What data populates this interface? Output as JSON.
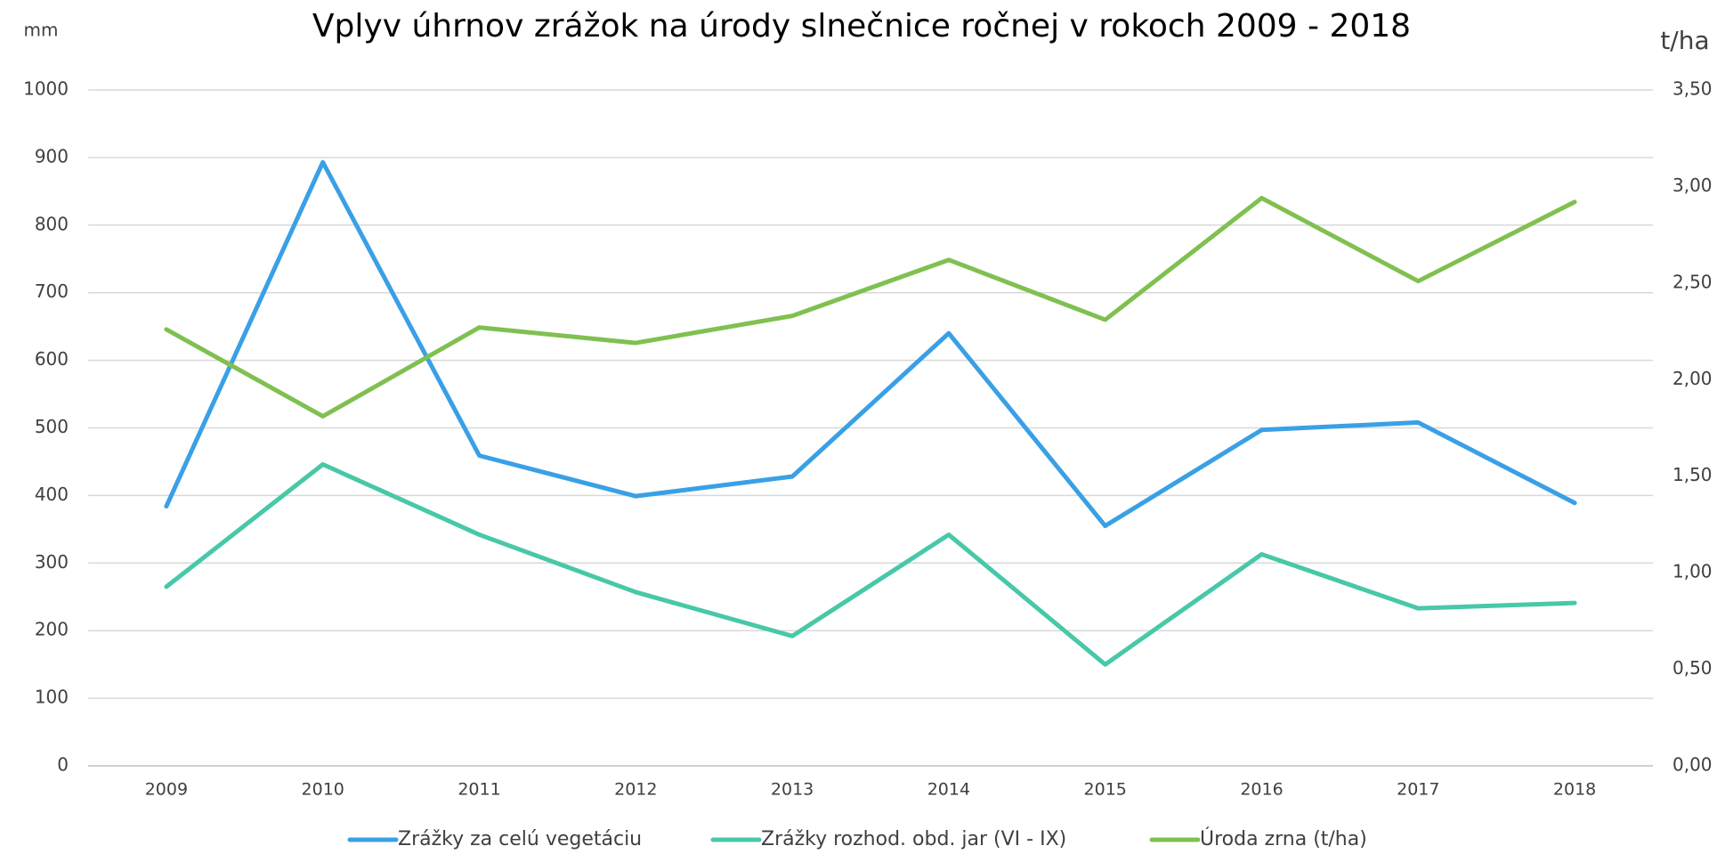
{
  "chart_data": {
    "type": "line",
    "title": "Vplyv úhrnov zrážok na úrody slnečnice ročnej v rokoch 2009 - 2018",
    "y_label": "mm",
    "y2_label": "t/ha",
    "categories": [
      "2009",
      "2010",
      "2011",
      "2012",
      "2013",
      "2014",
      "2015",
      "2016",
      "2017",
      "2018"
    ],
    "series": [
      {
        "name": "Zrážky za celú vegetáciu",
        "color": "#3aa0e6",
        "values": [
          384,
          893,
          459,
          399,
          428,
          640,
          355,
          497,
          508,
          389
        ]
      },
      {
        "name": "Zrážky rozhod. obd. jar (VI - IX)",
        "color": "#48c8a8",
        "values": [
          265,
          446,
          342,
          257,
          192,
          342,
          150,
          313,
          233,
          241
        ]
      },
      {
        "name": "Úroda zrna (t/ha)",
        "color": "#80c050",
        "axis": "y2",
        "values": [
          2.26,
          1.81,
          2.27,
          2.19,
          2.33,
          2.62,
          2.31,
          2.94,
          2.51,
          2.92
        ]
      }
    ],
    "ylim": [
      0,
      1000
    ],
    "yticks": [
      0,
      100,
      200,
      300,
      400,
      500,
      600,
      700,
      800,
      900,
      1000
    ],
    "y2lim": [
      0,
      3.5
    ],
    "y2ticks": [
      {
        "value": 0,
        "label": "0,00"
      },
      {
        "value": 0.5,
        "label": "0,50"
      },
      {
        "value": 1,
        "label": "1,00"
      },
      {
        "value": 1.5,
        "label": "1,50"
      },
      {
        "value": 2,
        "label": "2,00"
      },
      {
        "value": 2.5,
        "label": "2,50"
      },
      {
        "value": 3,
        "label": "3,00"
      },
      {
        "value": 3.5,
        "label": "3,50"
      }
    ],
    "grid": true,
    "legend": "bottom"
  }
}
